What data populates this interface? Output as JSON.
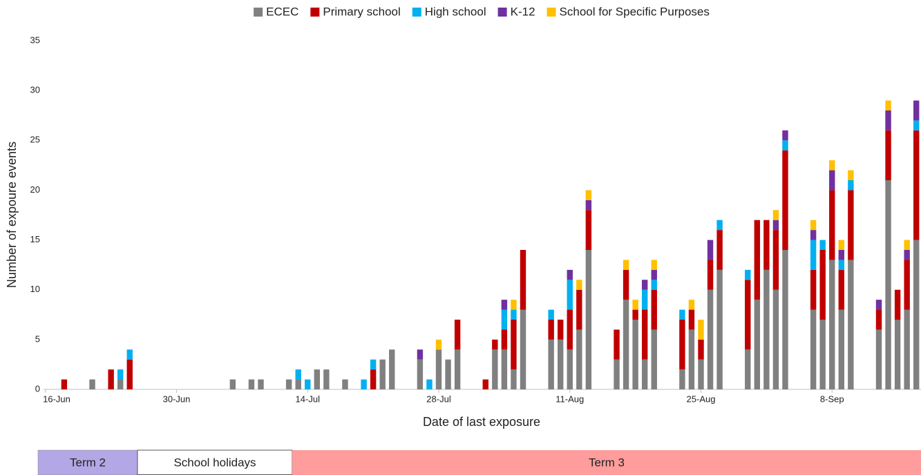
{
  "chart_data": {
    "type": "bar",
    "stacked": true,
    "xlabel": "Date of last exposure",
    "ylabel": "Number of expoure events",
    "ylim": [
      0,
      35
    ],
    "yticks": [
      0,
      5,
      10,
      15,
      20,
      25,
      30,
      35
    ],
    "grid": false,
    "legend": "top",
    "categories": [
      "16-Jun",
      null,
      null,
      null,
      null,
      null,
      null,
      null,
      null,
      null,
      null,
      null,
      null,
      null,
      "30-Jun",
      null,
      null,
      null,
      null,
      null,
      null,
      null,
      null,
      null,
      null,
      null,
      null,
      null,
      "14-Jul",
      null,
      null,
      null,
      null,
      null,
      null,
      null,
      null,
      null,
      null,
      null,
      null,
      null,
      "28-Jul",
      null,
      null,
      null,
      null,
      null,
      null,
      null,
      null,
      null,
      null,
      null,
      null,
      null,
      "11-Aug",
      null,
      null,
      null,
      null,
      null,
      null,
      null,
      null,
      null,
      null,
      null,
      null,
      null,
      "25-Aug",
      null,
      null,
      null,
      null,
      null,
      null,
      null,
      null,
      null,
      null,
      null,
      null,
      null,
      "8-Sep",
      null,
      null,
      null,
      null,
      null,
      null,
      null,
      null,
      null
    ],
    "series": [
      {
        "name": "ECEC",
        "color": "#808080",
        "values": [
          0,
          0,
          0,
          0,
          0,
          1,
          0,
          0,
          1,
          0,
          0,
          0,
          0,
          0,
          0,
          0,
          0,
          0,
          0,
          0,
          1,
          0,
          1,
          1,
          0,
          0,
          1,
          1,
          0,
          2,
          2,
          0,
          1,
          0,
          0,
          0,
          3,
          4,
          0,
          0,
          3,
          0,
          4,
          3,
          4,
          0,
          0,
          0,
          4,
          4,
          2,
          8,
          0,
          0,
          5,
          5,
          4,
          6,
          14,
          0,
          0,
          3,
          9,
          7,
          3,
          6,
          0,
          0,
          2,
          6,
          3,
          10,
          12,
          0,
          0,
          4,
          9,
          12,
          10,
          14,
          0,
          0,
          8,
          7,
          13,
          8,
          13,
          0,
          0,
          6,
          21,
          7,
          8,
          15
        ]
      },
      {
        "name": "Primary school",
        "color": "#c00000",
        "values": [
          0,
          0,
          1,
          0,
          0,
          0,
          0,
          2,
          0,
          3,
          0,
          0,
          0,
          0,
          0,
          0,
          0,
          0,
          0,
          0,
          0,
          0,
          0,
          0,
          0,
          0,
          0,
          0,
          0,
          0,
          0,
          0,
          0,
          0,
          0,
          2,
          0,
          0,
          0,
          0,
          0,
          0,
          0,
          0,
          3,
          0,
          0,
          1,
          1,
          2,
          5,
          6,
          0,
          0,
          2,
          2,
          4,
          4,
          4,
          0,
          0,
          3,
          3,
          1,
          5,
          4,
          0,
          0,
          5,
          2,
          2,
          3,
          4,
          0,
          0,
          7,
          8,
          5,
          6,
          10,
          0,
          0,
          4,
          7,
          7,
          4,
          7,
          0,
          0,
          2,
          5,
          3,
          5,
          11
        ]
      },
      {
        "name": "High school",
        "color": "#00b0f0",
        "values": [
          0,
          0,
          0,
          0,
          0,
          0,
          0,
          0,
          1,
          1,
          0,
          0,
          0,
          0,
          0,
          0,
          0,
          0,
          0,
          0,
          0,
          0,
          0,
          0,
          0,
          0,
          0,
          1,
          1,
          0,
          0,
          0,
          0,
          0,
          1,
          1,
          0,
          0,
          0,
          0,
          0,
          1,
          0,
          0,
          0,
          0,
          0,
          0,
          0,
          2,
          1,
          0,
          0,
          0,
          1,
          0,
          3,
          0,
          0,
          0,
          0,
          0,
          0,
          0,
          2,
          1,
          0,
          0,
          1,
          0,
          0,
          0,
          1,
          0,
          0,
          1,
          0,
          0,
          0,
          1,
          0,
          0,
          3,
          1,
          0,
          1,
          1,
          0,
          0,
          0,
          0,
          0,
          0,
          1
        ]
      },
      {
        "name": "K-12",
        "color": "#7030a0",
        "values": [
          0,
          0,
          0,
          0,
          0,
          0,
          0,
          0,
          0,
          0,
          0,
          0,
          0,
          0,
          0,
          0,
          0,
          0,
          0,
          0,
          0,
          0,
          0,
          0,
          0,
          0,
          0,
          0,
          0,
          0,
          0,
          0,
          0,
          0,
          0,
          0,
          0,
          0,
          0,
          0,
          1,
          0,
          0,
          0,
          0,
          0,
          0,
          0,
          0,
          1,
          0,
          0,
          0,
          0,
          0,
          0,
          1,
          0,
          1,
          0,
          0,
          0,
          0,
          0,
          1,
          1,
          0,
          0,
          0,
          0,
          0,
          2,
          0,
          0,
          0,
          0,
          0,
          0,
          1,
          1,
          0,
          0,
          1,
          0,
          2,
          1,
          0,
          0,
          0,
          1,
          2,
          0,
          1,
          2
        ]
      },
      {
        "name": "School for Specific Purposes",
        "color": "#ffc000",
        "values": [
          0,
          0,
          0,
          0,
          0,
          0,
          0,
          0,
          0,
          0,
          0,
          0,
          0,
          0,
          0,
          0,
          0,
          0,
          0,
          0,
          0,
          0,
          0,
          0,
          0,
          0,
          0,
          0,
          0,
          0,
          0,
          0,
          0,
          0,
          0,
          0,
          0,
          0,
          0,
          0,
          0,
          0,
          1,
          0,
          0,
          0,
          0,
          0,
          0,
          0,
          1,
          0,
          0,
          0,
          0,
          0,
          0,
          1,
          1,
          0,
          0,
          0,
          1,
          1,
          0,
          1,
          0,
          0,
          0,
          1,
          2,
          0,
          0,
          0,
          0,
          0,
          0,
          0,
          1,
          0,
          0,
          0,
          1,
          0,
          1,
          1,
          1,
          0,
          0,
          0,
          1,
          0,
          1,
          0
        ]
      }
    ],
    "annotations": [
      "Term 2",
      "School holidays",
      "Term 3"
    ]
  }
}
